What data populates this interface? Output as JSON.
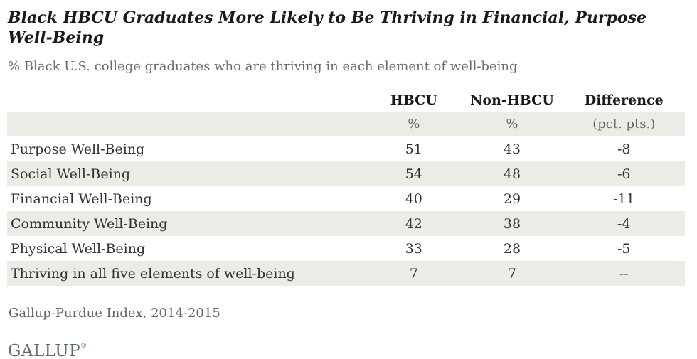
{
  "title": "Black HBCU Graduates More Likely to Be Thriving in Financial, Purpose Well-Being",
  "subtitle": "% Black U.S. college graduates who are thriving in each element of well-being",
  "table": {
    "columns": {
      "label": "",
      "hbcu": "HBCU",
      "non_hbcu": "Non-HBCU",
      "difference": "Difference"
    },
    "units": {
      "hbcu": "%",
      "non_hbcu": "%",
      "difference": "(pct. pts.)"
    },
    "rows": [
      {
        "label": "Purpose Well-Being",
        "hbcu": "51",
        "non_hbcu": "43",
        "difference": "-8"
      },
      {
        "label": "Social Well-Being",
        "hbcu": "54",
        "non_hbcu": "48",
        "difference": "-6"
      },
      {
        "label": "Financial Well-Being",
        "hbcu": "40",
        "non_hbcu": "29",
        "difference": "-11"
      },
      {
        "label": "Community Well-Being",
        "hbcu": "42",
        "non_hbcu": "38",
        "difference": "-4"
      },
      {
        "label": "Physical Well-Being",
        "hbcu": "33",
        "non_hbcu": "28",
        "difference": "-5"
      },
      {
        "label": "Thriving in all five elements of well-being",
        "hbcu": "7",
        "non_hbcu": "7",
        "difference": "--"
      }
    ]
  },
  "source": "Gallup-Purdue Index, 2014-2015",
  "logo": {
    "text": "GALLUP",
    "registered_mark": "®"
  },
  "colors": {
    "row_shade": "#ecebe5",
    "title_text": "#1a1a1a",
    "body_text": "#333333",
    "muted_text": "#666666",
    "logo_text": "#5e6a71"
  },
  "chart_data": {
    "type": "table",
    "title": "Black HBCU Graduates More Likely to Be Thriving in Financial, Purpose Well-Being",
    "subtitle": "% Black U.S. college graduates who are thriving in each element of well-being",
    "categories": [
      "Purpose Well-Being",
      "Social Well-Being",
      "Financial Well-Being",
      "Community Well-Being",
      "Physical Well-Being",
      "Thriving in all five elements of well-being"
    ],
    "series": [
      {
        "name": "HBCU",
        "values": [
          51,
          54,
          40,
          42,
          33,
          7
        ]
      },
      {
        "name": "Non-HBCU",
        "values": [
          43,
          48,
          29,
          38,
          28,
          7
        ]
      },
      {
        "name": "Difference (pct. pts.)",
        "values": [
          -8,
          -6,
          -11,
          -4,
          -5,
          null
        ]
      }
    ],
    "source": "Gallup-Purdue Index, 2014-2015"
  }
}
